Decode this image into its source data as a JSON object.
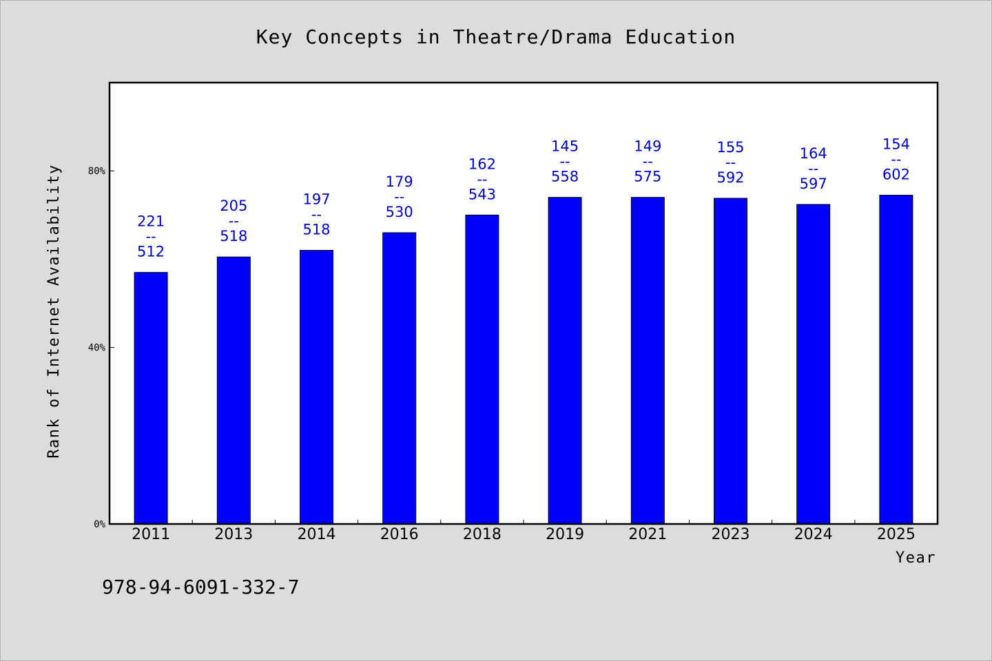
{
  "chart_data": {
    "type": "bar",
    "title": "Key Concepts in Theatre/Drama Education",
    "xlabel": "Year",
    "ylabel": "Rank of Internet Availability",
    "categories": [
      "2011",
      "2013",
      "2014",
      "2016",
      "2018",
      "2019",
      "2021",
      "2023",
      "2024",
      "2025"
    ],
    "values": [
      57.0,
      60.5,
      62.0,
      66.0,
      70.0,
      74.0,
      74.0,
      73.8,
      72.4,
      74.5
    ],
    "value_unit": "%",
    "data_labels": [
      {
        "top": "221",
        "sep": "--",
        "bottom": "512"
      },
      {
        "top": "205",
        "sep": "--",
        "bottom": "518"
      },
      {
        "top": "197",
        "sep": "--",
        "bottom": "518"
      },
      {
        "top": "179",
        "sep": "--",
        "bottom": "530"
      },
      {
        "top": "162",
        "sep": "--",
        "bottom": "543"
      },
      {
        "top": "145",
        "sep": "--",
        "bottom": "558"
      },
      {
        "top": "149",
        "sep": "--",
        "bottom": "575"
      },
      {
        "top": "155",
        "sep": "--",
        "bottom": "592"
      },
      {
        "top": "164",
        "sep": "--",
        "bottom": "597"
      },
      {
        "top": "154",
        "sep": "--",
        "bottom": "602"
      }
    ],
    "ylim": [
      0,
      100
    ],
    "yticks": [
      0,
      40,
      80
    ],
    "ytick_labels": [
      "0%",
      "40%",
      "80%"
    ],
    "grid": false,
    "bar_color": "#0000ff",
    "label_color": "#0000cc"
  },
  "footer": {
    "isbn": "978-94-6091-332-7"
  },
  "colors": {
    "background": "#dcdcdc",
    "plot_background": "#ffffff"
  }
}
